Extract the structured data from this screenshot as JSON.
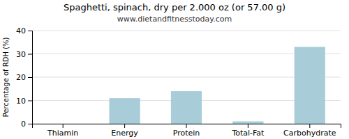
{
  "chart_data": {
    "type": "bar",
    "title": "Spaghetti, spinach, dry per 2.000 oz (or 57.00 g)",
    "subtitle": "www.dietandfitnesstoday.com",
    "categories": [
      "Thiamin",
      "Energy",
      "Protein",
      "Total-Fat",
      "Carbohydrate"
    ],
    "values": [
      0,
      11,
      14,
      1,
      33
    ],
    "color": "#a8cdd8",
    "ylabel": "Percentage of RDH (%)",
    "ylim": [
      0,
      40
    ],
    "yticks": [
      0,
      10,
      20,
      30,
      40
    ],
    "grid": true
  }
}
